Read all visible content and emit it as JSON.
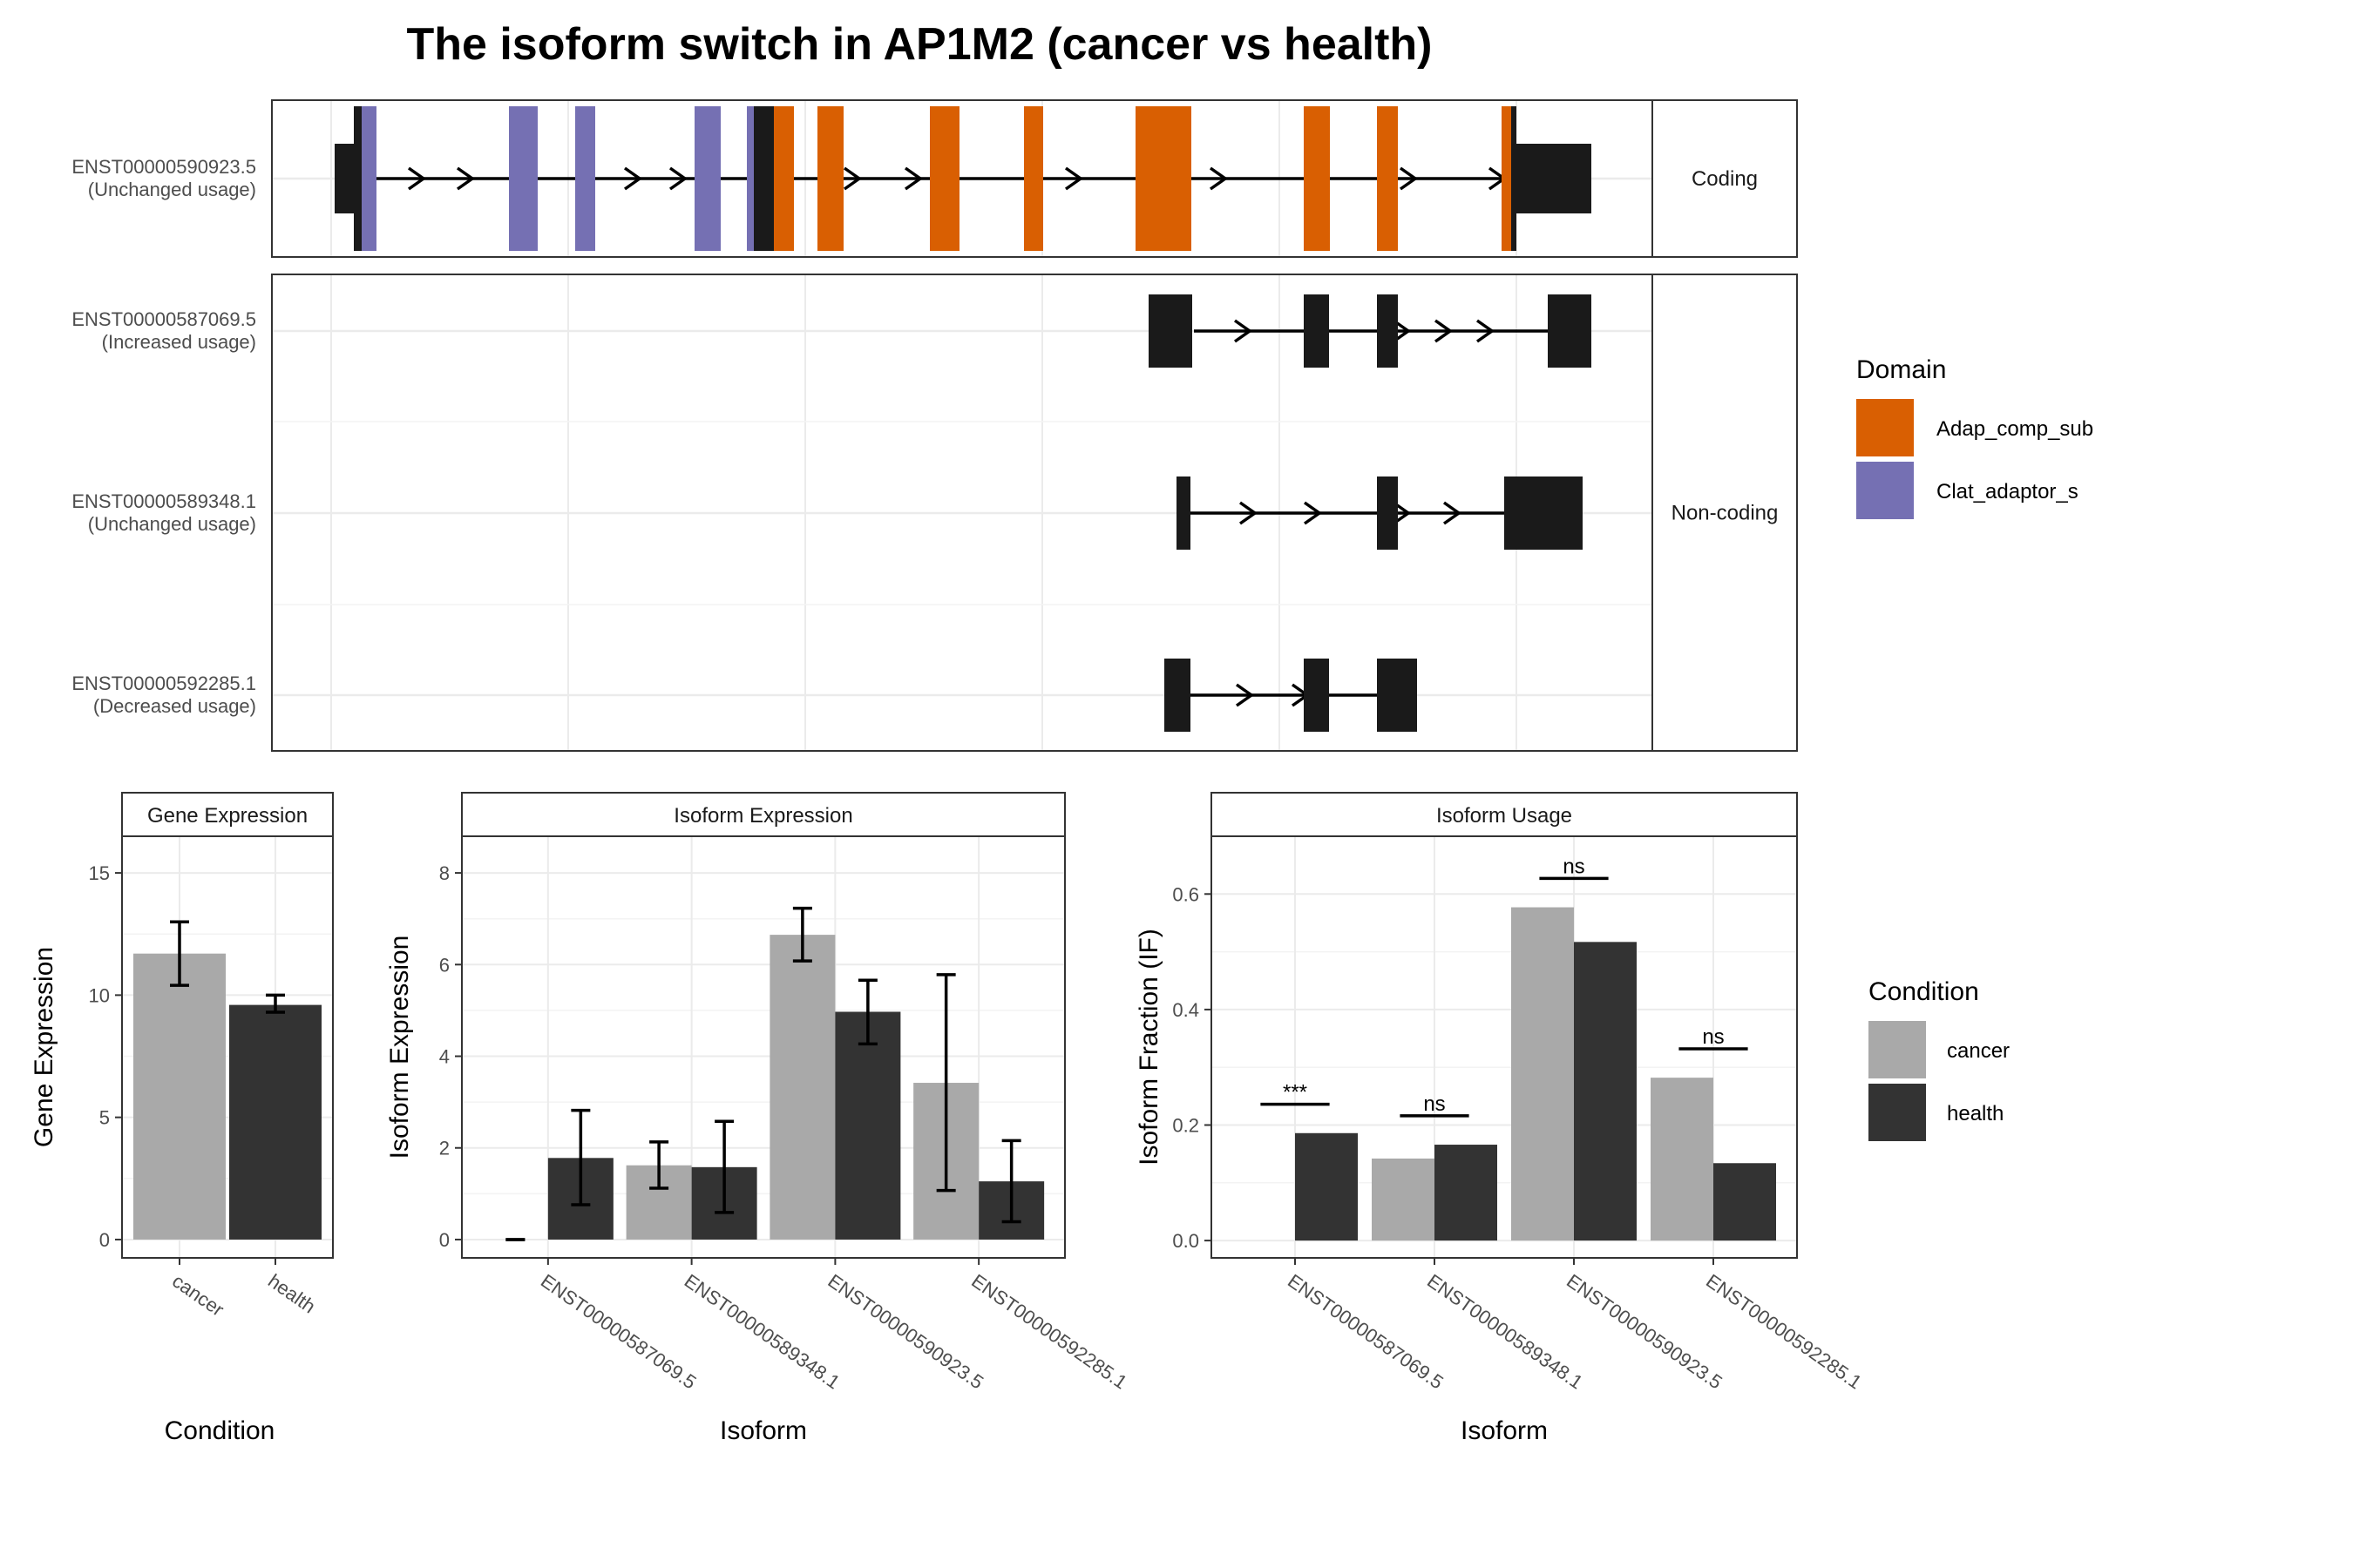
{
  "title": "The isoform switch in AP1M2 (cancer vs health)",
  "colors": {
    "cancer": "#a9a9a9",
    "health": "#333333",
    "exon": "#1a1a1a",
    "Adap_comp_sub": "#d95f02",
    "Clat_adaptor_s": "#7570b3"
  },
  "structure": {
    "facets": [
      {
        "label": "Coding",
        "rows": 1
      },
      {
        "label": "Non-coding",
        "rows": 3
      }
    ],
    "domain_legend": {
      "title": "Domain",
      "entries": [
        {
          "label": "Adap_comp_sub",
          "color": "#d95f02"
        },
        {
          "label": "Clat_adaptor_s",
          "color": "#7570b3"
        }
      ]
    },
    "transcripts": [
      {
        "id": "ENST00000590923.5",
        "usage": "(Unchanged usage)"
      },
      {
        "id": "ENST00000587069.5",
        "usage": "(Increased usage)"
      },
      {
        "id": "ENST00000589348.1",
        "usage": "(Unchanged usage)"
      },
      {
        "id": "ENST00000592285.1",
        "usage": "(Decreased usage)"
      }
    ]
  },
  "chart_data": [
    {
      "type": "bar",
      "strip": "Gene Expression",
      "xlabel": "Condition",
      "ylabel": "Gene Expression",
      "categories": [
        "cancer",
        "health"
      ],
      "yticks": [
        0,
        5,
        10,
        15
      ],
      "ylim": [
        -0.75,
        16.5
      ],
      "values": [
        11.7,
        9.6
      ],
      "err_low": [
        10.4,
        9.3
      ],
      "err_high": [
        13.0,
        10.0
      ]
    },
    {
      "type": "bar",
      "strip": "Isoform Expression",
      "xlabel": "Isoform",
      "ylabel": "Isoform Expression",
      "categories": [
        "ENST00000587069.5",
        "ENST00000589348.1",
        "ENST00000590923.5",
        "ENST00000592285.1"
      ],
      "yticks": [
        0,
        2,
        4,
        6,
        8
      ],
      "ylim": [
        -0.4,
        8.8
      ],
      "series": [
        {
          "name": "cancer",
          "values": [
            0,
            1.62,
            6.65,
            3.42
          ],
          "err_low": [
            0,
            1.12,
            6.08,
            1.07
          ],
          "err_high": [
            0,
            2.13,
            7.23,
            5.78
          ]
        },
        {
          "name": "health",
          "values": [
            1.78,
            1.58,
            4.97,
            1.27
          ],
          "err_low": [
            0.76,
            0.59,
            4.27,
            0.39
          ],
          "err_high": [
            2.82,
            2.58,
            5.66,
            2.16
          ]
        }
      ]
    },
    {
      "type": "bar",
      "strip": "Isoform Usage",
      "xlabel": "Isoform",
      "ylabel": "Isoform Fraction (IF)",
      "categories": [
        "ENST00000587069.5",
        "ENST00000589348.1",
        "ENST00000590923.5",
        "ENST00000592285.1"
      ],
      "yticks": [
        "0.0",
        "0.2",
        "0.4",
        "0.6"
      ],
      "ylim": [
        -0.03,
        0.7
      ],
      "significance": [
        "***",
        "ns",
        "ns",
        "ns"
      ],
      "series": [
        {
          "name": "cancer",
          "values": [
            0,
            0.142,
            0.577,
            0.282
          ]
        },
        {
          "name": "health",
          "values": [
            0.186,
            0.166,
            0.517,
            0.134
          ]
        }
      ]
    }
  ],
  "condition_legend": {
    "title": "Condition",
    "entries": [
      {
        "label": "cancer",
        "color": "#a9a9a9"
      },
      {
        "label": "health",
        "color": "#333333"
      }
    ]
  }
}
